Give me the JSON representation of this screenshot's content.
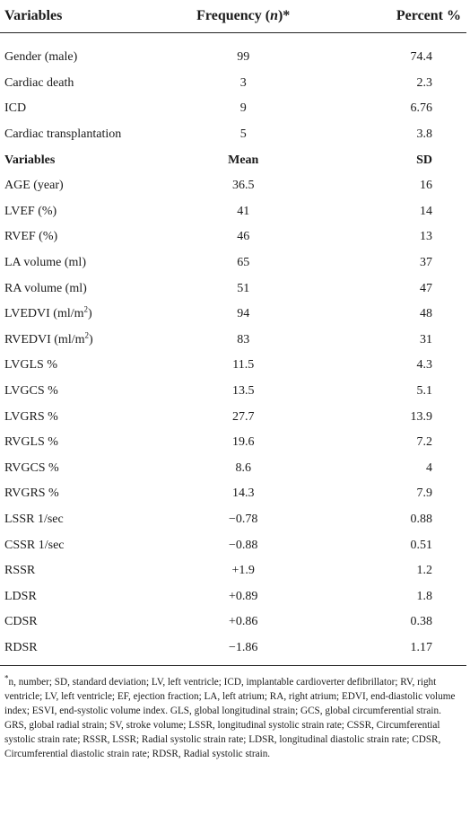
{
  "table": {
    "headers": {
      "col1": "Variables",
      "col2_pre": "Frequency (",
      "col2_italic": "n",
      "col2_post": ")*",
      "col3": "Percent %"
    },
    "frequency_rows": [
      {
        "variable": "Gender (male)",
        "value": "99",
        "percent": "74.4"
      },
      {
        "variable": "Cardiac death",
        "value": "3",
        "percent": "2.3"
      },
      {
        "variable": "ICD",
        "value": "9",
        "percent": "6.76"
      },
      {
        "variable": "Cardiac transplantation",
        "value": "5",
        "percent": "3.8"
      }
    ],
    "subheader": {
      "col1": "Variables",
      "col2": "Mean",
      "col3": "SD"
    },
    "mean_rows": [
      {
        "variable": "AGE (year)",
        "mean": "36.5",
        "sd": "16"
      },
      {
        "variable": "LVEF (%)",
        "mean": "41",
        "sd": "14"
      },
      {
        "variable": "RVEF (%)",
        "mean": "46",
        "sd": "13"
      },
      {
        "variable": "LA volume (ml)",
        "mean": "65",
        "sd": "37"
      },
      {
        "variable": "RA volume (ml)",
        "mean": "51",
        "sd": "47"
      },
      {
        "variable_pre": "LVEDVI (ml/m",
        "variable_sup": "2",
        "variable_post": ")",
        "mean": "94",
        "sd": "48"
      },
      {
        "variable_pre": "RVEDVI (ml/m",
        "variable_sup": "2",
        "variable_post": ")",
        "mean": "83",
        "sd": "31"
      },
      {
        "variable": "LVGLS %",
        "mean": "11.5",
        "sd": "4.3"
      },
      {
        "variable": "LVGCS %",
        "mean": "13.5",
        "sd": "5.1"
      },
      {
        "variable": "LVGRS %",
        "mean": "27.7",
        "sd": "13.9"
      },
      {
        "variable": "RVGLS %",
        "mean": "19.6",
        "sd": "7.2"
      },
      {
        "variable": "RVGCS %",
        "mean": "8.6",
        "sd": "4"
      },
      {
        "variable": "RVGRS %",
        "mean": "14.3",
        "sd": "7.9"
      },
      {
        "variable": "LSSR 1/sec",
        "mean": "−0.78",
        "sd": "0.88"
      },
      {
        "variable": "CSSR 1/sec",
        "mean": "−0.88",
        "sd": "0.51"
      },
      {
        "variable": "RSSR",
        "mean": "+1.9",
        "sd": "1.2"
      },
      {
        "variable": "LDSR",
        "mean": "+0.89",
        "sd": "1.8"
      },
      {
        "variable": "CDSR",
        "mean": "+0.86",
        "sd": "0.38"
      },
      {
        "variable": "RDSR",
        "mean": "−1.86",
        "sd": "1.17"
      }
    ]
  },
  "footnote": {
    "para1_star": "*",
    "para1_n": "n",
    "para1_rest": ", number; SD, standard deviation; LV, left ventricle; ICD, implantable cardioverter defibrillator; RV, right ventricle; LV, left ventricle; EF, ejection fraction; LA, left atrium; RA, right atrium; EDVI, end-diastolic volume index; ESVI, end-systolic volume index. GLS, global longitudinal strain; GCS, global circumferential strain.",
    "para2": "GRS, global radial strain; SV, stroke volume; LSSR, longitudinal systolic strain rate; CSSR, Circumferential systolic strain rate; RSSR, LSSR; Radial systolic strain rate; LDSR, longitudinal diastolic strain rate; CDSR, Circumferential diastolic strain rate; RDSR, Radial systolic strain."
  }
}
